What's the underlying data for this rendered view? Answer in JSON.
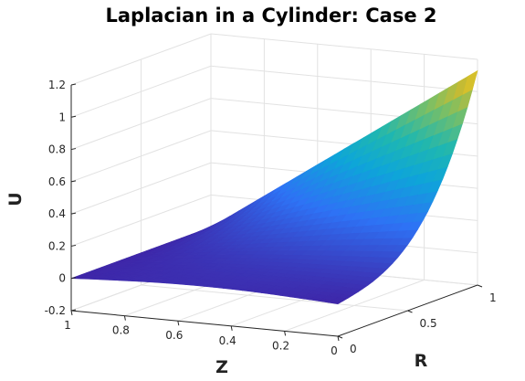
{
  "chart_data": {
    "type": "surface",
    "title": "Laplacian in a Cylinder: Case 2",
    "xlabel": "Z",
    "ylabel": "R",
    "zlabel": "U",
    "x_range": [
      0,
      1
    ],
    "y_range": [
      0,
      1
    ],
    "z_range": [
      -0.2,
      1.2
    ],
    "x_ticks": [
      "1",
      "0.8",
      "0.6",
      "0.4",
      "0.2",
      "0"
    ],
    "y_ticks": [
      "0",
      "0.5",
      "1"
    ],
    "z_ticks": [
      "-0.2",
      "0",
      "0.2",
      "0.4",
      "0.6",
      "0.8",
      "1",
      "1.2"
    ],
    "grid": true,
    "colormap": "parula",
    "surface_samples": {
      "description_axes": [
        "Z",
        "R",
        "U"
      ],
      "points": [
        {
          "Z": 1,
          "R": 0,
          "U": 0
        },
        {
          "Z": 0,
          "R": 0,
          "U": 0
        },
        {
          "Z": 1,
          "R": 0.9,
          "U": 0
        },
        {
          "Z": 0,
          "R": 0.9,
          "U": 0.1
        },
        {
          "Z": 0,
          "R": 1,
          "U": 1.1
        },
        {
          "Z": 1,
          "R": 1,
          "U": 0
        }
      ]
    }
  }
}
